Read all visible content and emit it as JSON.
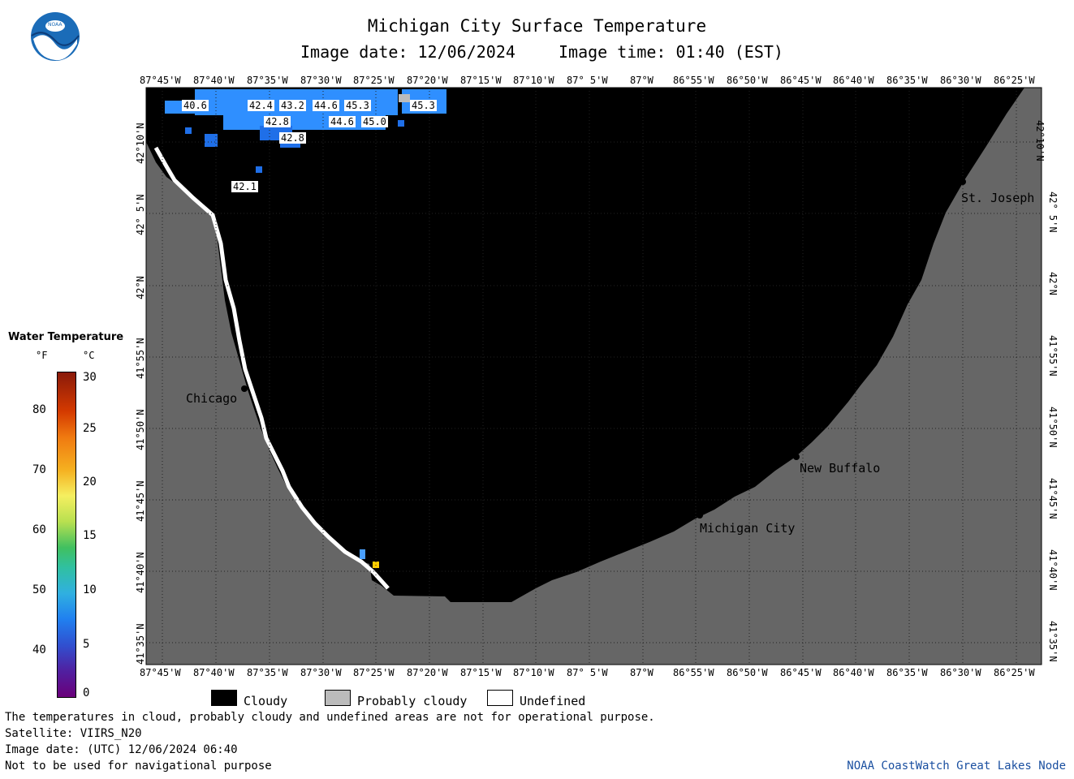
{
  "header": {
    "logo_text": "NOAA",
    "title": "Michigan City Surface Temperature",
    "image_date": "Image date: 12/06/2024",
    "image_time": "Image time: 01:40 (EST)"
  },
  "map": {
    "lon_labels": [
      "87°45'W",
      "87°40'W",
      "87°35'W",
      "87°30'W",
      "87°25'W",
      "87°20'W",
      "87°15'W",
      "87°10'W",
      "87° 5'W",
      "87°W",
      "86°55'W",
      "86°50'W",
      "86°45'W",
      "86°40'W",
      "86°35'W",
      "86°30'W",
      "86°25'W"
    ],
    "lat_labels": [
      "42°10'N",
      "42° 5'N",
      "42°N",
      "41°55'N",
      "41°50'N",
      "41°45'N",
      "41°40'N",
      "41°35'N"
    ],
    "cities": [
      {
        "name": "Chicago"
      },
      {
        "name": "Michigan City"
      },
      {
        "name": "New Buffalo"
      },
      {
        "name": "St. Joseph"
      }
    ],
    "temp_labels": [
      "40.6",
      "42.4",
      "43.2",
      "44.6",
      "45.3",
      "45.3",
      "42.8",
      "44.6",
      "45.0",
      "42.8",
      "42.1"
    ],
    "colors": {
      "water_cloudy": "#000000",
      "land": "#666666",
      "grid": "#222222",
      "undefined": "#ffffff"
    }
  },
  "colorbar": {
    "title": "Water Temperature",
    "unit_f": "°F",
    "unit_c": "°C",
    "f_ticks": [
      "80",
      "70",
      "60",
      "50",
      "40"
    ],
    "c_ticks": [
      "30",
      "25",
      "20",
      "15",
      "10",
      "5",
      "0"
    ]
  },
  "legend": {
    "cloudy": "Cloudy",
    "probably_cloudy": "Probably cloudy",
    "undefined": "Undefined"
  },
  "footer": {
    "note": "The temperatures in cloud, probably cloudy and undefined areas are not for operational purpose.",
    "satellite": "Satellite: VIIRS_N20",
    "utc_date": "Image date: (UTC) 12/06/2024  06:40",
    "nav_warning": "Not to be used for navigational purpose",
    "credit": "NOAA CoastWatch Great Lakes Node"
  }
}
